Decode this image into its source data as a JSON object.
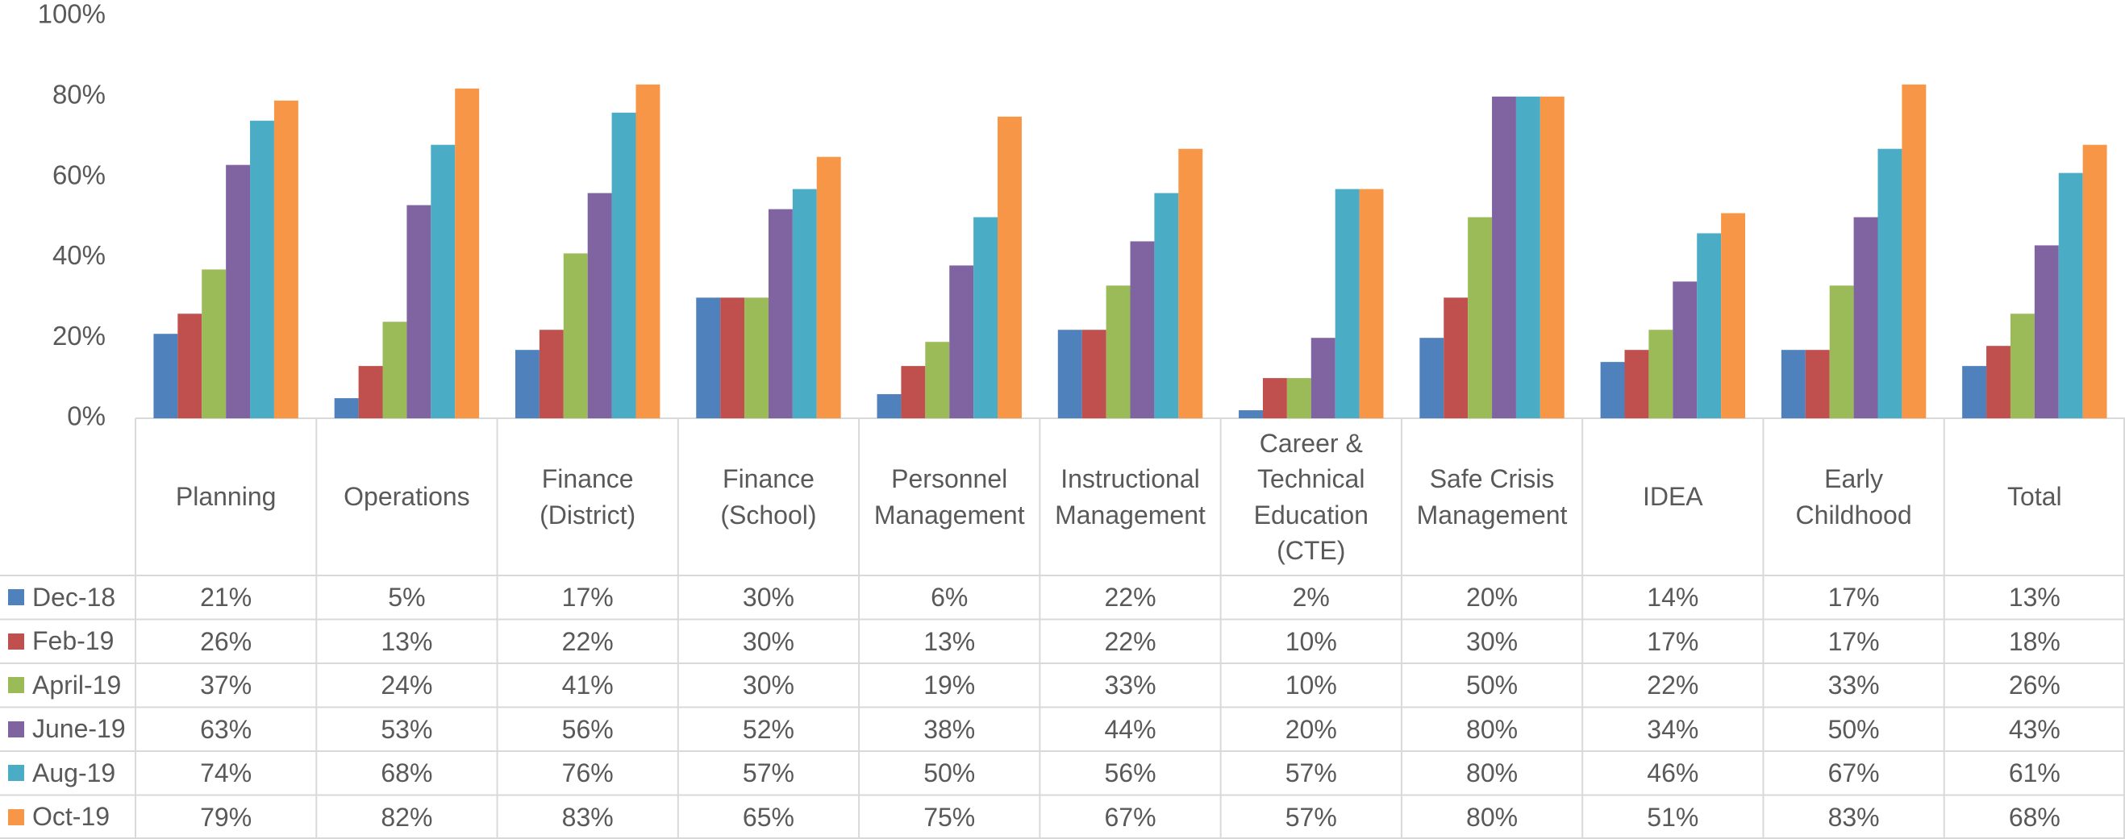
{
  "chart_data": {
    "type": "bar",
    "categories": [
      "Planning",
      "Operations",
      "Finance (District)",
      "Finance (School)",
      "Personnel Management",
      "Instructional Management",
      "Career & Technical Education (CTE)",
      "Safe Crisis Management",
      "IDEA",
      "Early Childhood",
      "Total"
    ],
    "series": [
      {
        "name": "Dec-18",
        "color": "#4f81bd",
        "values": [
          21,
          5,
          17,
          30,
          6,
          22,
          2,
          20,
          14,
          17,
          13
        ],
        "value_labels": [
          "21%",
          "5%",
          "17%",
          "30%",
          "6%",
          "22%",
          "2%",
          "20%",
          "14%",
          "17%",
          "13%"
        ]
      },
      {
        "name": "Feb-19",
        "color": "#c0504d",
        "values": [
          26,
          13,
          22,
          30,
          13,
          22,
          10,
          30,
          17,
          17,
          18
        ],
        "value_labels": [
          "26%",
          "13%",
          "22%",
          "30%",
          "13%",
          "22%",
          "10%",
          "30%",
          "17%",
          "17%",
          "18%"
        ]
      },
      {
        "name": "April-19",
        "color": "#9bbb59",
        "values": [
          37,
          24,
          41,
          30,
          19,
          33,
          10,
          50,
          22,
          33,
          26
        ],
        "value_labels": [
          "37%",
          "24%",
          "41%",
          "30%",
          "19%",
          "33%",
          "10%",
          "50%",
          "22%",
          "33%",
          "26%"
        ]
      },
      {
        "name": "June-19",
        "color": "#8064a2",
        "values": [
          63,
          53,
          56,
          52,
          38,
          44,
          20,
          80,
          34,
          50,
          43
        ],
        "value_labels": [
          "63%",
          "53%",
          "56%",
          "52%",
          "38%",
          "44%",
          "20%",
          "80%",
          "34%",
          "50%",
          "43%"
        ]
      },
      {
        "name": "Aug-19",
        "color": "#4bacc6",
        "values": [
          74,
          68,
          76,
          57,
          50,
          56,
          57,
          80,
          46,
          67,
          61
        ],
        "value_labels": [
          "74%",
          "68%",
          "76%",
          "57%",
          "50%",
          "56%",
          "57%",
          "80%",
          "46%",
          "67%",
          "61%"
        ]
      },
      {
        "name": "Oct-19",
        "color": "#f79646",
        "values": [
          79,
          82,
          83,
          65,
          75,
          67,
          57,
          80,
          51,
          83,
          68
        ],
        "value_labels": [
          "79%",
          "82%",
          "83%",
          "65%",
          "75%",
          "67%",
          "57%",
          "80%",
          "51%",
          "83%",
          "68%"
        ]
      }
    ],
    "ylim": [
      0,
      100
    ],
    "yticks": [
      {
        "value": 0,
        "label": "0%"
      },
      {
        "value": 20,
        "label": "20%"
      },
      {
        "value": 40,
        "label": "40%"
      },
      {
        "value": 60,
        "label": "60%"
      },
      {
        "value": 80,
        "label": "80%"
      },
      {
        "value": 100,
        "label": "100%"
      }
    ],
    "grid": false
  }
}
